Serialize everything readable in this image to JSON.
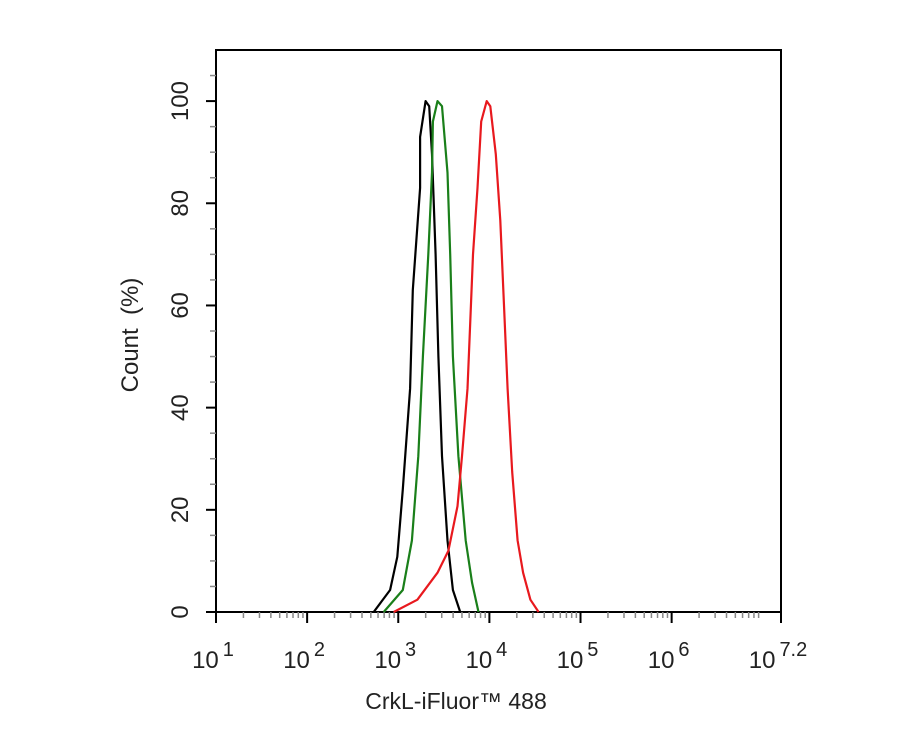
{
  "chart_data": {
    "type": "line",
    "title": "",
    "xlabel": "CrkL-iFluor™ 488",
    "ylabel": "Count  (%)",
    "xscale": "log",
    "xlim": [
      10,
      15848932
    ],
    "ylim": [
      0,
      110
    ],
    "grid": false,
    "legend": "none",
    "x_ticks": [
      {
        "base": "10",
        "exp": "1",
        "value": 10
      },
      {
        "base": "10",
        "exp": "2",
        "value": 100
      },
      {
        "base": "10",
        "exp": "3",
        "value": 1000
      },
      {
        "base": "10",
        "exp": "4",
        "value": 10000
      },
      {
        "base": "10",
        "exp": "5",
        "value": 100000
      },
      {
        "base": "10",
        "exp": "6",
        "value": 1000000
      },
      {
        "base": "10",
        "exp": "7.2",
        "value": 15848932
      }
    ],
    "y_ticks": [
      "0",
      "20",
      "40",
      "60",
      "80",
      "100"
    ],
    "series": [
      {
        "color": "#000000",
        "x": [
          537,
          813,
          977,
          1122,
          1349,
          1445,
          1738,
          1738,
          1995,
          2188,
          2344,
          2570,
          2754,
          3020,
          3467,
          3981,
          4786
        ],
        "y": [
          0,
          4.3,
          10.8,
          24,
          43.7,
          63,
          83,
          93,
          100,
          99,
          89.6,
          70,
          50,
          30.5,
          14,
          4.3,
          0
        ]
      },
      {
        "color": "#1a7f1a",
        "x": [
          692,
          1122,
          1413,
          1660,
          1862,
          2138,
          2344,
          2399,
          2692,
          3020,
          3467,
          3715,
          3981,
          4571,
          5495,
          6457,
          7586
        ],
        "y": [
          0,
          4.3,
          14,
          30.5,
          50,
          70,
          86,
          96,
          100,
          99,
          86,
          70,
          50,
          30.5,
          14,
          5.7,
          0
        ]
      },
      {
        "color": "#e8191e",
        "x": [
          891,
          1622,
          2692,
          3548,
          4467,
          5012,
          5754,
          6166,
          6607,
          7413,
          8128,
          9333,
          10233,
          11749,
          13183,
          14454,
          15849,
          17783,
          20417,
          23442,
          28184,
          34674
        ],
        "y": [
          0,
          2.4,
          7.7,
          12,
          20.7,
          30.5,
          43.7,
          57,
          70,
          83,
          96,
          100,
          99,
          89.6,
          76.6,
          60,
          43.7,
          27.4,
          14,
          7.7,
          2.4,
          0
        ]
      }
    ]
  }
}
